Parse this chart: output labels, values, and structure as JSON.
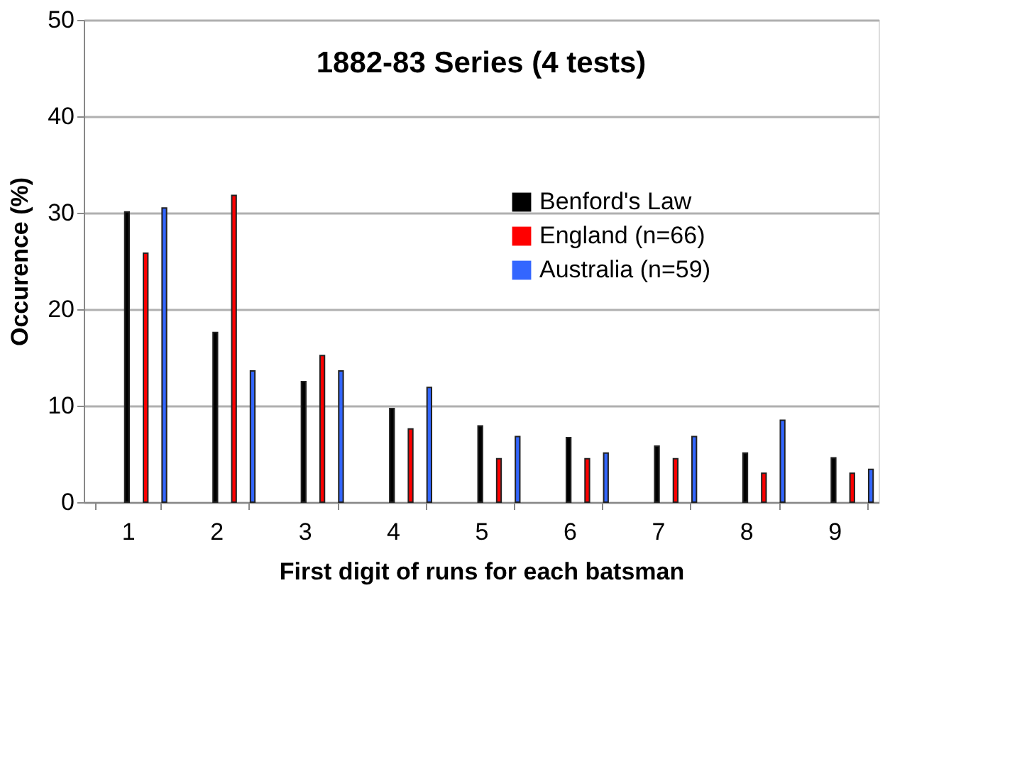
{
  "chart_data": {
    "type": "bar",
    "title": "1882-83 Series (4 tests)",
    "xlabel": "First digit of runs for each batsman",
    "ylabel": "Occurence (%)",
    "categories": [
      "1",
      "2",
      "3",
      "4",
      "5",
      "6",
      "7",
      "8",
      "9"
    ],
    "series": [
      {
        "name": "Benford's Law",
        "color": "#000000",
        "values": [
          30.1,
          17.6,
          12.5,
          9.7,
          7.9,
          6.7,
          5.8,
          5.1,
          4.6
        ]
      },
      {
        "name": "England (n=66)",
        "color": "#ff0000",
        "values": [
          25.8,
          31.8,
          15.2,
          7.6,
          4.5,
          4.5,
          4.5,
          3.0,
          3.0
        ]
      },
      {
        "name": "Australia (n=59)",
        "color": "#3366ff",
        "values": [
          30.5,
          13.6,
          13.6,
          11.9,
          6.8,
          5.1,
          6.8,
          8.5,
          3.4
        ]
      }
    ],
    "ylim": [
      0,
      50
    ],
    "yticks": [
      0,
      10,
      20,
      30,
      40,
      50
    ],
    "grid": "y",
    "legend": "top right"
  }
}
